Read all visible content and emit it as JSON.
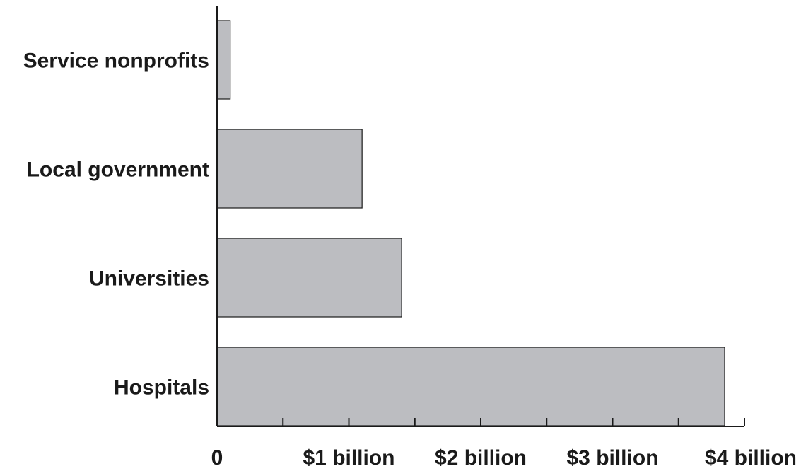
{
  "chart_data": {
    "type": "bar",
    "orientation": "horizontal",
    "categories": [
      "Service nonprofits",
      "Local government",
      "Universities",
      "Hospitals"
    ],
    "values": [
      0.1,
      1.1,
      1.4,
      3.85
    ],
    "value_unit": "billion dollars",
    "xlim": [
      0,
      4
    ],
    "x_ticks": [
      0,
      0.5,
      1,
      1.5,
      2,
      2.5,
      3,
      3.5,
      4
    ],
    "x_tick_labels": [
      {
        "value": 0,
        "label": "0"
      },
      {
        "value": 1,
        "label": "$1 billion"
      },
      {
        "value": 2,
        "label": "$2 billion"
      },
      {
        "value": 3,
        "label": "$3 billion"
      },
      {
        "value": 4,
        "label": "$4 billion"
      }
    ],
    "title": "",
    "xlabel": "",
    "ylabel": "",
    "grid": false,
    "legend": "none",
    "colors": {
      "bar_fill": "#bcbdc1",
      "bar_stroke": "#1a1a1a",
      "axis": "#1a1a1a"
    }
  }
}
